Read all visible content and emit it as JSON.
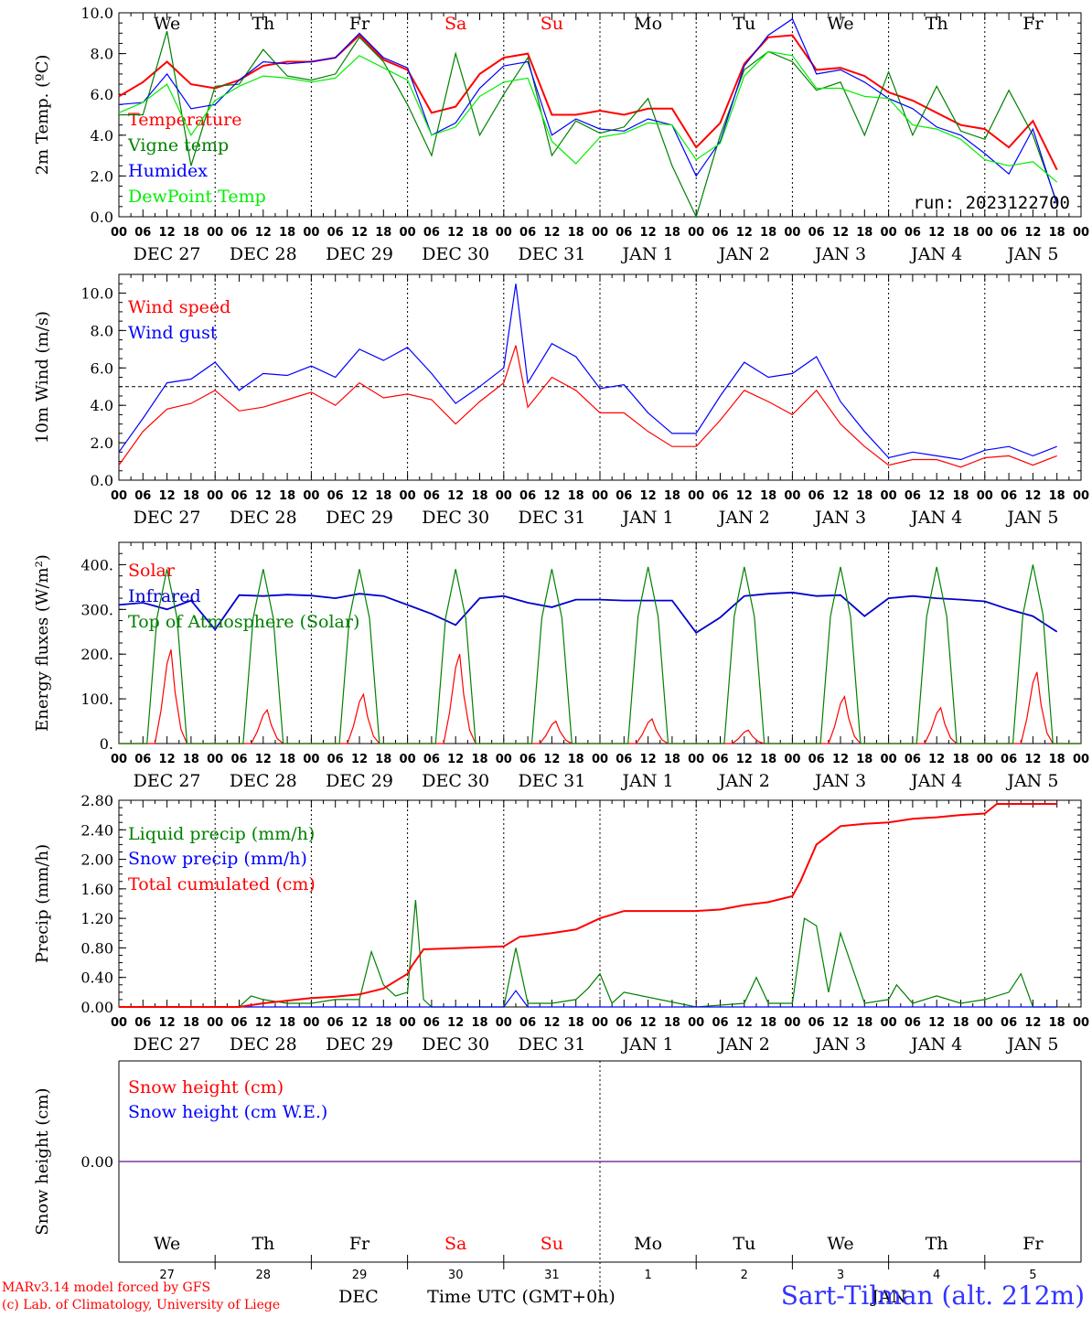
{
  "meteogram": {
    "run_label": "run: 2023122700",
    "hour_ticks": [
      "00",
      "06",
      "12",
      "18"
    ],
    "date_labels": [
      "DEC 27",
      "DEC 28",
      "DEC 29",
      "DEC 30",
      "DEC 31",
      "JAN  1",
      "JAN  2",
      "JAN  3",
      "JAN  4",
      "JAN  5"
    ],
    "weekday_labels": [
      {
        "text": "We",
        "color": "#000000"
      },
      {
        "text": "Th",
        "color": "#000000"
      },
      {
        "text": "Fr",
        "color": "#000000"
      },
      {
        "text": "Sa",
        "color": "#ff0000"
      },
      {
        "text": "Su",
        "color": "#ff0000"
      },
      {
        "text": "Mo",
        "color": "#000000"
      },
      {
        "text": "Tu",
        "color": "#000000"
      },
      {
        "text": "We",
        "color": "#000000"
      },
      {
        "text": "Th",
        "color": "#000000"
      },
      {
        "text": "Fr",
        "color": "#000000"
      }
    ],
    "bottom_day_numbers": [
      "27",
      "28",
      "29",
      "30",
      "31",
      "1",
      "2",
      "3",
      "4",
      "5"
    ],
    "bottom_month_left": "DEC",
    "bottom_month_right": "JAN",
    "time_axis_label": "Time UTC (GMT+0h)",
    "credit_line1": "MARv3.14 model forced by GFS",
    "credit_line2": "(c) Lab. of Climatology, University of Liege",
    "station": "Sart-Tilman (alt. 212m)"
  },
  "chart_data": [
    {
      "type": "line",
      "ylabel": "2m Temp. (ºC)",
      "ylim": [
        0,
        10
      ],
      "yticks": [
        "0.0",
        "2.0",
        "4.0",
        "6.0",
        "8.0",
        "10.0"
      ],
      "x_unit": "hours since Dec 27 00 UTC",
      "grid": "vertical dotted day separators",
      "legend_placement": "left",
      "series": [
        {
          "name": "Temperature",
          "color": "#ff0000",
          "x": [
            0,
            6,
            12,
            18,
            24,
            30,
            36,
            42,
            48,
            54,
            60,
            66,
            72,
            78,
            84,
            90,
            96,
            102,
            108,
            114,
            120,
            126,
            132,
            138,
            144,
            150,
            156,
            162,
            168,
            174,
            180,
            186,
            192,
            198,
            204,
            210,
            216,
            222,
            228,
            234
          ],
          "values": [
            5.9,
            6.6,
            7.6,
            6.5,
            6.3,
            6.7,
            7.4,
            7.6,
            7.6,
            7.8,
            8.9,
            7.7,
            7.2,
            5.1,
            5.4,
            7.0,
            7.8,
            8.0,
            5.0,
            5.0,
            5.2,
            5.0,
            5.3,
            5.3,
            3.4,
            4.6,
            7.5,
            8.8,
            8.9,
            7.2,
            7.3,
            6.9,
            6.1,
            5.7,
            5.1,
            4.5,
            4.3,
            3.4,
            4.7,
            2.3
          ]
        },
        {
          "name": "Vigne temp",
          "color": "#008000",
          "x": [
            0,
            6,
            12,
            18,
            24,
            30,
            36,
            42,
            48,
            54,
            60,
            66,
            72,
            78,
            84,
            90,
            96,
            102,
            108,
            114,
            120,
            126,
            132,
            138,
            144,
            150,
            156,
            162,
            168,
            174,
            180,
            186,
            192,
            198,
            204,
            210,
            216,
            222,
            228,
            234
          ],
          "values": [
            5.0,
            5.0,
            9.1,
            2.5,
            6.4,
            6.5,
            8.2,
            6.9,
            6.7,
            7.0,
            8.8,
            7.6,
            5.5,
            3.0,
            8.0,
            4.0,
            6.0,
            7.8,
            3.0,
            4.7,
            4.1,
            4.4,
            5.8,
            2.5,
            0.0,
            4.0,
            7.2,
            8.1,
            7.6,
            6.2,
            6.6,
            4.0,
            7.1,
            4.0,
            6.4,
            4.2,
            3.8,
            6.2,
            4.0,
            0.7
          ]
        },
        {
          "name": "Humidex",
          "color": "#0000ff",
          "x": [
            0,
            6,
            12,
            18,
            24,
            30,
            36,
            42,
            48,
            54,
            60,
            66,
            72,
            78,
            84,
            90,
            96,
            102,
            108,
            114,
            120,
            126,
            132,
            138,
            144,
            150,
            156,
            162,
            168,
            174,
            180,
            186,
            192,
            198,
            204,
            210,
            216,
            222,
            228,
            234
          ],
          "values": [
            5.5,
            5.6,
            7.0,
            5.3,
            5.5,
            6.7,
            7.6,
            7.5,
            7.6,
            7.8,
            9.0,
            7.8,
            7.3,
            4.0,
            4.6,
            6.3,
            7.4,
            7.6,
            4.0,
            4.8,
            4.3,
            4.2,
            4.8,
            4.5,
            2.0,
            3.7,
            7.4,
            8.9,
            9.7,
            7.0,
            7.2,
            6.6,
            5.8,
            5.3,
            4.4,
            4.0,
            3.1,
            2.1,
            4.3,
            0.6
          ]
        },
        {
          "name": "DewPoint Temp",
          "color": "#00ee00",
          "x": [
            0,
            6,
            12,
            18,
            24,
            30,
            36,
            42,
            48,
            54,
            60,
            66,
            72,
            78,
            84,
            90,
            96,
            102,
            108,
            114,
            120,
            126,
            132,
            138,
            144,
            150,
            156,
            162,
            168,
            174,
            180,
            186,
            192,
            198,
            204,
            210,
            216,
            222,
            228,
            234
          ],
          "values": [
            5.1,
            5.6,
            6.5,
            4.0,
            5.7,
            6.4,
            6.9,
            6.8,
            6.6,
            6.8,
            7.9,
            7.3,
            6.7,
            4.0,
            4.4,
            5.9,
            6.6,
            6.8,
            3.7,
            2.6,
            3.9,
            4.1,
            4.6,
            4.5,
            2.8,
            3.6,
            6.9,
            8.1,
            7.9,
            6.3,
            6.3,
            5.9,
            5.8,
            4.5,
            4.3,
            3.8,
            2.8,
            2.5,
            2.7,
            1.7
          ]
        }
      ]
    },
    {
      "type": "line",
      "ylabel": "10m Wind (m/s)",
      "ylim": [
        0,
        11
      ],
      "yticks": [
        "0.0",
        "2.0",
        "4.0",
        "6.0",
        "8.0",
        "10.0"
      ],
      "reference_line": 5.0,
      "x_unit": "hours since Dec 27 00 UTC",
      "legend_placement": "left",
      "series": [
        {
          "name": "Wind speed",
          "color": "#ff0000",
          "x": [
            0,
            6,
            12,
            18,
            24,
            30,
            36,
            42,
            48,
            54,
            60,
            66,
            72,
            78,
            84,
            90,
            96,
            99,
            102,
            108,
            114,
            120,
            126,
            132,
            138,
            144,
            150,
            156,
            162,
            168,
            174,
            180,
            186,
            192,
            198,
            204,
            210,
            216,
            222,
            228,
            234
          ],
          "values": [
            0.8,
            2.6,
            3.8,
            4.1,
            4.8,
            3.7,
            3.9,
            4.3,
            4.7,
            4.0,
            5.2,
            4.4,
            4.6,
            4.3,
            3.0,
            4.2,
            5.2,
            7.2,
            3.9,
            5.5,
            4.8,
            3.6,
            3.6,
            2.6,
            1.8,
            1.8,
            3.2,
            4.8,
            4.2,
            3.5,
            4.8,
            3.0,
            1.8,
            0.8,
            1.1,
            1.1,
            0.7,
            1.2,
            1.3,
            0.8,
            1.3
          ]
        },
        {
          "name": "Wind gust",
          "color": "#0000ff",
          "x": [
            0,
            6,
            12,
            18,
            24,
            30,
            36,
            42,
            48,
            54,
            60,
            66,
            72,
            78,
            84,
            90,
            96,
            99,
            102,
            108,
            114,
            120,
            126,
            132,
            138,
            144,
            150,
            156,
            162,
            168,
            174,
            180,
            186,
            192,
            198,
            204,
            210,
            216,
            222,
            228,
            234
          ],
          "values": [
            1.5,
            3.3,
            5.2,
            5.4,
            6.3,
            4.8,
            5.7,
            5.6,
            6.1,
            5.5,
            7.0,
            6.4,
            7.1,
            5.7,
            4.1,
            5.0,
            6.0,
            10.5,
            5.2,
            7.3,
            6.6,
            4.9,
            5.1,
            3.6,
            2.5,
            2.5,
            4.5,
            6.3,
            5.5,
            5.7,
            6.6,
            4.2,
            2.6,
            1.2,
            1.5,
            1.3,
            1.1,
            1.6,
            1.8,
            1.3,
            1.8
          ]
        }
      ]
    },
    {
      "type": "line",
      "ylabel": "Energy fluxes (W/m²)",
      "ylim": [
        0,
        450
      ],
      "yticks": [
        "0.",
        "100.",
        "200.",
        "300.",
        "400."
      ],
      "x_unit": "hours since Dec 27 00 UTC",
      "legend_placement": "left",
      "series": [
        {
          "name": "Solar",
          "color": "#ff0000",
          "daily_peak": [
            210,
            75,
            110,
            200,
            50,
            55,
            30,
            105,
            80,
            160
          ]
        },
        {
          "name": "Infrared",
          "color": "#0000cc",
          "x": [
            0,
            6,
            12,
            18,
            24,
            30,
            36,
            42,
            48,
            54,
            60,
            66,
            72,
            78,
            84,
            90,
            96,
            102,
            108,
            114,
            120,
            126,
            132,
            138,
            144,
            150,
            156,
            162,
            168,
            174,
            180,
            186,
            192,
            198,
            204,
            210,
            216,
            222,
            228,
            234
          ],
          "values": [
            310,
            315,
            300,
            320,
            255,
            332,
            330,
            333,
            331,
            325,
            335,
            330,
            310,
            290,
            265,
            325,
            330,
            315,
            305,
            322,
            322,
            320,
            320,
            320,
            248,
            282,
            330,
            335,
            338,
            330,
            332,
            285,
            325,
            330,
            325,
            322,
            318,
            300,
            285,
            250
          ]
        },
        {
          "name": "Top of Atmosphere (Solar)",
          "color": "#008000",
          "daily_peak": [
            390,
            390,
            390,
            390,
            390,
            395,
            395,
            395,
            395,
            400
          ]
        }
      ]
    },
    {
      "type": "line",
      "ylabel": "Precip (mm/h)",
      "ylim": [
        0,
        2.8
      ],
      "yticks": [
        "0.00",
        "0.40",
        "0.80",
        "1.20",
        "1.60",
        "2.00",
        "2.40",
        "2.80"
      ],
      "x_unit": "hours since Dec 27 00 UTC",
      "legend_placement": "left",
      "series": [
        {
          "name": "Liquid precip (mm/h)",
          "color": "#008000",
          "x": [
            0,
            30,
            33,
            36,
            42,
            48,
            54,
            60,
            63,
            66,
            69,
            72,
            74,
            76,
            78,
            96,
            99,
            102,
            108,
            114,
            117,
            120,
            123,
            126,
            144,
            156,
            159,
            162,
            168,
            171,
            174,
            177,
            180,
            186,
            192,
            194,
            198,
            204,
            210,
            216,
            222,
            225,
            228,
            234
          ],
          "values": [
            0,
            0,
            0.15,
            0.1,
            0.05,
            0.05,
            0.1,
            0.1,
            0.75,
            0.3,
            0.15,
            0.2,
            1.45,
            0.1,
            0,
            0,
            0.8,
            0.05,
            0.05,
            0.1,
            0.25,
            0.45,
            0.05,
            0.2,
            0,
            0.05,
            0.4,
            0.05,
            0.05,
            1.2,
            1.1,
            0.2,
            1.0,
            0.05,
            0.1,
            0.3,
            0.05,
            0.15,
            0.05,
            0.1,
            0.2,
            0.45,
            0,
            0
          ]
        },
        {
          "name": "Snow precip (mm/h)",
          "color": "#0000ff",
          "x": [
            0,
            96,
            99,
            102,
            120,
            234
          ],
          "values": [
            0,
            0,
            0.22,
            0,
            0,
            0
          ]
        },
        {
          "name": "Total cumulated (cm)",
          "color": "#ff0000",
          "x": [
            0,
            30,
            36,
            48,
            54,
            60,
            66,
            72,
            73,
            76,
            96,
            100,
            102,
            108,
            114,
            120,
            126,
            144,
            150,
            156,
            162,
            168,
            170,
            174,
            180,
            186,
            192,
            198,
            204,
            210,
            216,
            219,
            234
          ],
          "values": [
            0,
            0,
            0.05,
            0.12,
            0.14,
            0.17,
            0.25,
            0.45,
            0.55,
            0.78,
            0.82,
            0.95,
            0.96,
            1.0,
            1.05,
            1.2,
            1.3,
            1.3,
            1.32,
            1.38,
            1.42,
            1.5,
            1.7,
            2.2,
            2.45,
            2.48,
            2.5,
            2.55,
            2.57,
            2.6,
            2.62,
            2.75,
            2.75
          ]
        }
      ]
    },
    {
      "type": "line",
      "ylabel": "Snow height (cm)",
      "yticks": [
        "0.00"
      ],
      "x_unit": "hours since Dec 27 00 UTC",
      "legend_placement": "left",
      "series": [
        {
          "name": "Snow height (cm)",
          "color": "#ff0000",
          "x": [
            0,
            240
          ],
          "values": [
            0,
            0
          ]
        },
        {
          "name": "Snow height (cm W.E.)",
          "color": "#0000ff",
          "x": [
            0,
            240
          ],
          "values": [
            0,
            0
          ]
        }
      ]
    }
  ]
}
